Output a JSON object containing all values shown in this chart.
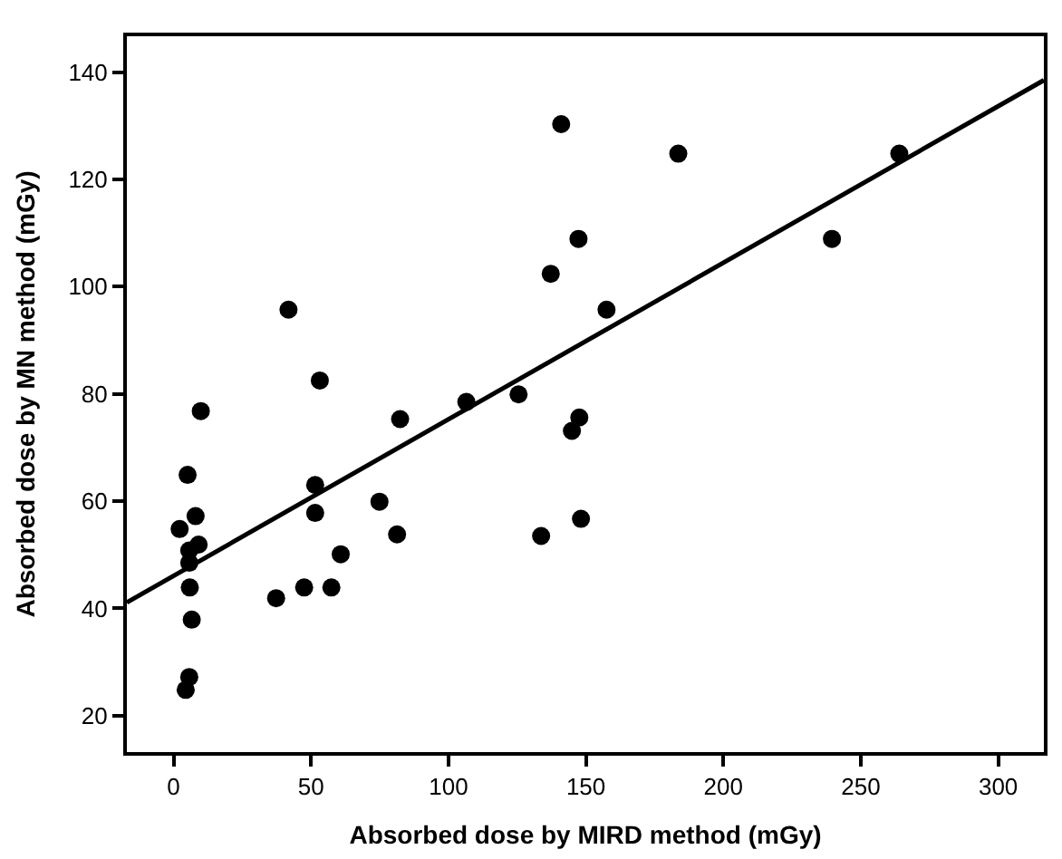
{
  "chart_data": {
    "type": "scatter",
    "xlabel": "Absorbed dose by MIRD method (mGy)",
    "ylabel": "Absorbed dose by MN method (mGy)",
    "xlim": [
      -17,
      316.6
    ],
    "ylim": [
      13.2,
      146.7
    ],
    "xticks": [
      0,
      50,
      100,
      150,
      200,
      250,
      300
    ],
    "yticks": [
      20,
      40,
      60,
      80,
      100,
      120,
      140
    ],
    "series": [
      {
        "color": "#000000",
        "marker": "circle",
        "x": [
          141,
          137.2,
          41.8,
          53.2,
          9.9,
          125.5,
          106.5,
          82.4,
          5.1,
          51.5,
          74.9,
          2.2,
          8.0,
          51.5,
          81.3,
          133.7,
          9.1,
          5.7,
          5.7,
          60.8,
          5.9,
          47.5,
          57.4,
          37.3,
          6.6,
          5.7,
          4.4,
          183.6,
          264.0,
          147.3,
          239.5,
          157.5,
          147.6,
          144.9,
          148.2
        ],
        "values": [
          130.3,
          102.4,
          95.7,
          82.5,
          76.8,
          79.9,
          78.5,
          75.3,
          64.9,
          63.0,
          59.9,
          54.8,
          57.2,
          57.8,
          53.8,
          53.5,
          51.9,
          50.8,
          48.5,
          50.1,
          43.9,
          43.9,
          43.9,
          41.9,
          37.9,
          27.2,
          24.8,
          124.8,
          124.8,
          108.9,
          108.9,
          95.7,
          75.6,
          73.1,
          56.7
        ]
      },
      {
        "type": "line",
        "color": "#000000",
        "line_style": "solid",
        "x": [
          -17,
          316.6
        ],
        "values": [
          41.1,
          138.5
        ]
      }
    ]
  }
}
